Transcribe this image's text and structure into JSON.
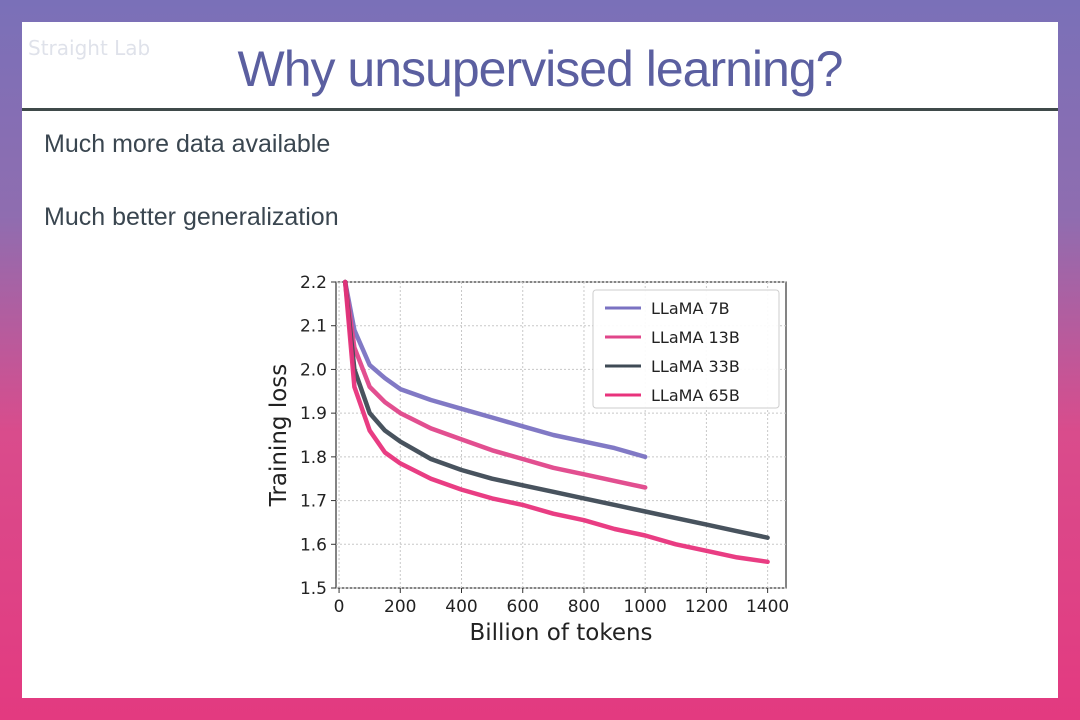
{
  "slide": {
    "title": "Why unsupervised learning?",
    "watermark": "Straight Lab",
    "bullets": [
      "Much more data available",
      "Much better generalization"
    ]
  },
  "colors": {
    "llama_7b": "#7a72c2",
    "llama_13b": "#e0468a",
    "llama_33b": "#3e4a55",
    "llama_65b": "#e8337c"
  },
  "chart_data": {
    "type": "line",
    "xlabel": "Billion of tokens",
    "ylabel": "Training loss",
    "xlim": [
      -10,
      1460
    ],
    "ylim": [
      1.5,
      2.2
    ],
    "xticks": [
      0,
      200,
      400,
      600,
      800,
      1000,
      1200,
      1400
    ],
    "yticks": [
      1.5,
      1.6,
      1.7,
      1.8,
      1.9,
      2.0,
      2.1,
      2.2
    ],
    "grid": true,
    "legend_position": "top-right",
    "series": [
      {
        "name": "LLaMA 7B",
        "color": "#7a72c2",
        "x": [
          20,
          50,
          100,
          150,
          200,
          300,
          400,
          500,
          600,
          700,
          800,
          900,
          1000
        ],
        "y": [
          2.2,
          2.09,
          2.01,
          1.98,
          1.955,
          1.93,
          1.91,
          1.89,
          1.87,
          1.85,
          1.835,
          1.82,
          1.8
        ]
      },
      {
        "name": "LLaMA 13B",
        "color": "#e0468a",
        "x": [
          20,
          50,
          100,
          150,
          200,
          300,
          400,
          500,
          600,
          700,
          800,
          900,
          1000
        ],
        "y": [
          2.2,
          2.05,
          1.96,
          1.925,
          1.9,
          1.865,
          1.84,
          1.815,
          1.795,
          1.775,
          1.76,
          1.745,
          1.73
        ]
      },
      {
        "name": "LLaMA 33B",
        "color": "#3e4a55",
        "x": [
          20,
          50,
          100,
          150,
          200,
          300,
          400,
          500,
          600,
          700,
          800,
          900,
          1000,
          1100,
          1200,
          1300,
          1400
        ],
        "y": [
          2.2,
          2.0,
          1.9,
          1.86,
          1.835,
          1.795,
          1.77,
          1.75,
          1.735,
          1.72,
          1.705,
          1.69,
          1.675,
          1.66,
          1.645,
          1.63,
          1.615
        ]
      },
      {
        "name": "LLaMA 65B",
        "color": "#e8337c",
        "x": [
          20,
          50,
          100,
          150,
          200,
          300,
          400,
          500,
          600,
          700,
          800,
          900,
          1000,
          1100,
          1200,
          1300,
          1400
        ],
        "y": [
          2.2,
          1.96,
          1.86,
          1.81,
          1.785,
          1.75,
          1.725,
          1.705,
          1.69,
          1.67,
          1.655,
          1.635,
          1.62,
          1.6,
          1.585,
          1.57,
          1.56
        ]
      }
    ]
  }
}
